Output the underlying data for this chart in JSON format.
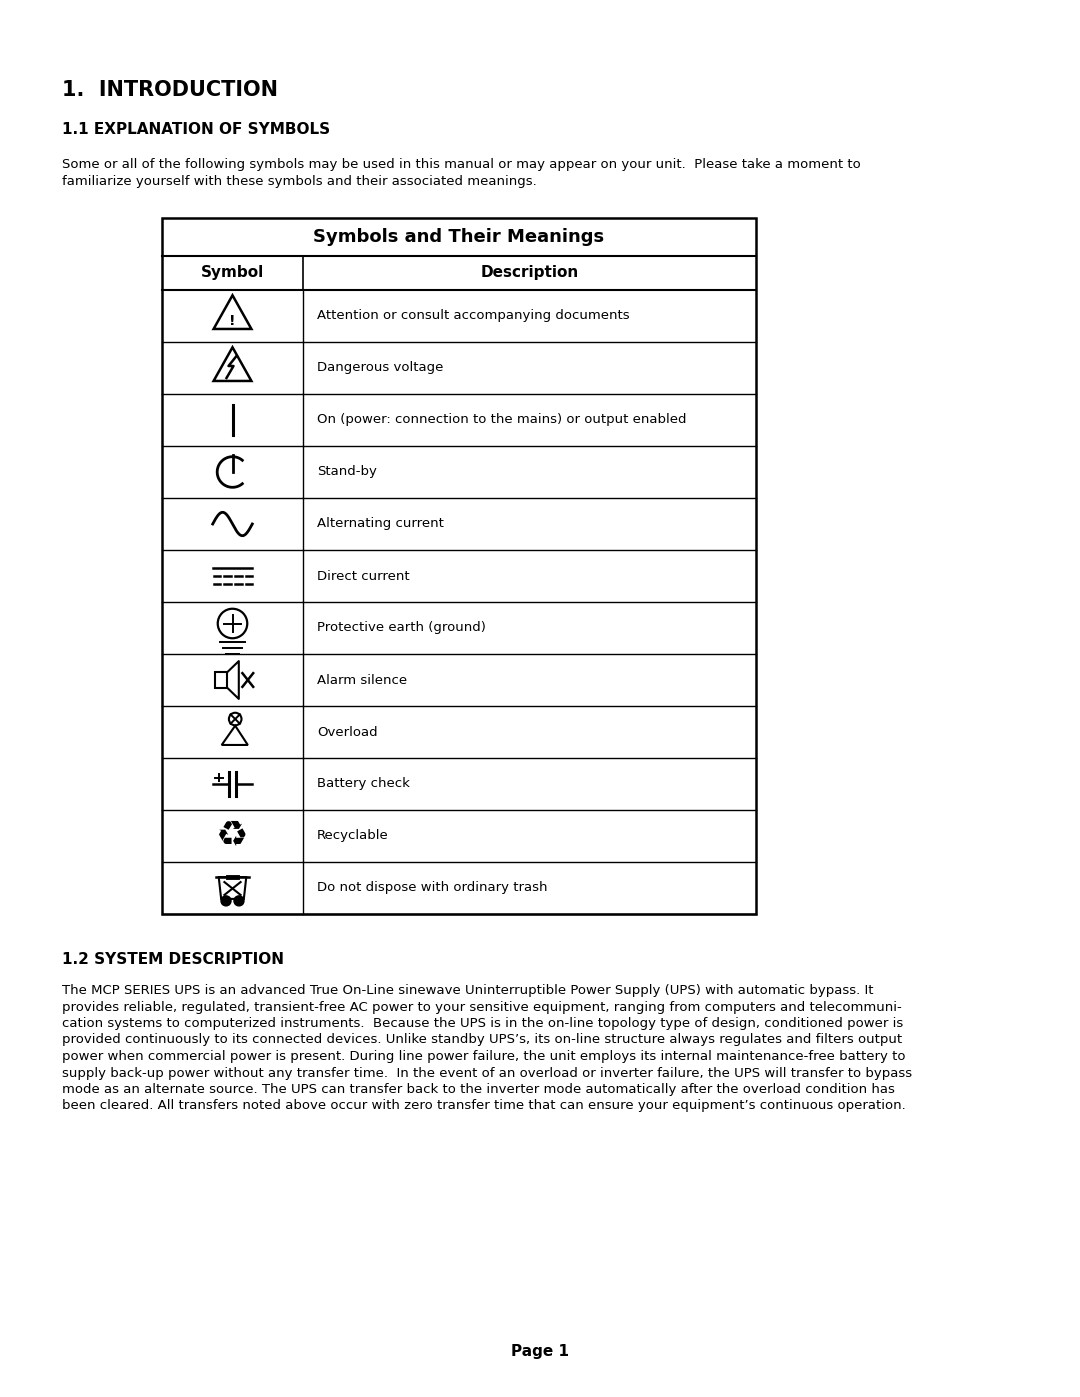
{
  "title1": "1.  INTRODUCTION",
  "title2": "1.1 EXPLANATION OF SYMBOLS",
  "intro_text1": "Some or all of the following symbols may be used in this manual or may appear on your unit.  Please take a moment to",
  "intro_text2": "familiarize yourself with these symbols and their associated meanings.",
  "table_title": "Symbols and Their Meanings",
  "col1_header": "Symbol",
  "col2_header": "Description",
  "rows": [
    "Attention or consult accompanying documents",
    "Dangerous voltage",
    "On (power: connection to the mains) or output enabled",
    "Stand-by",
    "Alternating current",
    "Direct current",
    "Protective earth (ground)",
    "Alarm silence",
    "Overload",
    "Battery check",
    "Recyclable",
    "Do not dispose with ordinary trash"
  ],
  "section2_title": "1.2 SYSTEM DESCRIPTION",
  "section2_text": [
    "The MCP SERIES UPS is an advanced True On-Line sinewave Uninterruptible Power Supply (UPS) with automatic bypass. It",
    "provides reliable, regulated, transient-free AC power to your sensitive equipment, ranging from computers and telecommuni-",
    "cation systems to computerized instruments.  Because the UPS is in the on-line topology type of design, conditioned power is",
    "provided continuously to its connected devices. Unlike standby UPS’s, its on-line structure always regulates and filters output",
    "power when commercial power is present. During line power failure, the unit employs its internal maintenance-free battery to",
    "supply back-up power without any transfer time.  In the event of an overload or inverter failure, the UPS will transfer to bypass",
    "mode as an alternate source. The UPS can transfer back to the inverter mode automatically after the overload condition has",
    "been cleared. All transfers noted above occur with zero transfer time that can ensure your equipment’s continuous operation."
  ],
  "page_label": "Page 1",
  "bg_color": "#ffffff",
  "text_color": "#000000"
}
